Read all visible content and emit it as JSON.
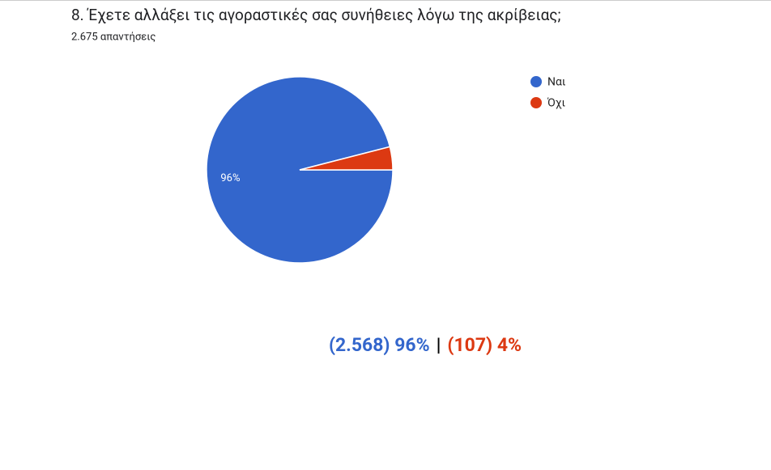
{
  "chart_data": {
    "type": "pie",
    "title": "8. Έχετε αλλάξει τις αγοραστικές σας συνήθειες λόγω της ακρίβειας;",
    "subtitle": "2.675 απαντήσεις",
    "categories": [
      "Ναι",
      "Όχι"
    ],
    "values": [
      96,
      4
    ],
    "value_labels": [
      "96%",
      null
    ],
    "colors": [
      "#3366cc",
      "#dc3912"
    ],
    "start_angle": 90,
    "legend": "right",
    "annotations": [
      {
        "text": "(2.568) 96%",
        "color": "#3366cc"
      },
      {
        "text": "|",
        "color": "#000000"
      },
      {
        "text": "(107) 4%",
        "color": "#dc3912"
      }
    ]
  }
}
